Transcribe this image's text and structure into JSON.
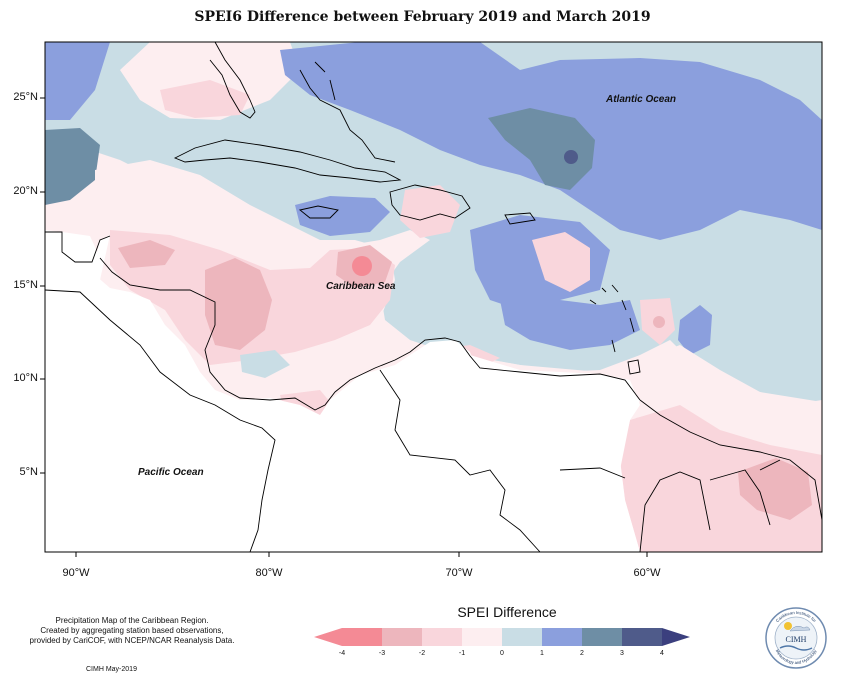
{
  "title": "SPEI6 Difference between February 2019 and March 2019",
  "axes": {
    "y_ticks": [
      "25°N",
      "20°N",
      "15°N",
      "10°N",
      "5°N"
    ],
    "x_ticks": [
      "90°W",
      "80°W",
      "70°W",
      "60°W"
    ]
  },
  "labels": {
    "atlantic": "Atlantic Ocean",
    "caribbean": "Caribbean Sea",
    "pacific": "Pacific Ocean"
  },
  "notes": [
    "Precipitation Map of the Caribbean Region.",
    "Created by aggregating station based observations,",
    "provided by CariCOF, with NCEP/NCAR Reanalysis Data."
  ],
  "credit": "CIMH May-2019",
  "legend": {
    "title": "SPEI Difference",
    "ticks": [
      "-4",
      "-3",
      "-2",
      "-1",
      "0",
      "1",
      "2",
      "3",
      "4"
    ],
    "colors": [
      "#f48a95",
      "#edb6bd",
      "#f9d6dc",
      "#fdeef0",
      "#c9dde5",
      "#8b9fdd",
      "#6e8ea5",
      "#4f5b8a"
    ],
    "arrow_low": "#f48a95",
    "arrow_high": "#3b3f7e"
  },
  "logo": {
    "text": "CIMH",
    "ring_top": "Caribbean Institute for",
    "ring_bottom": "Meteorology and Hydrology"
  }
}
